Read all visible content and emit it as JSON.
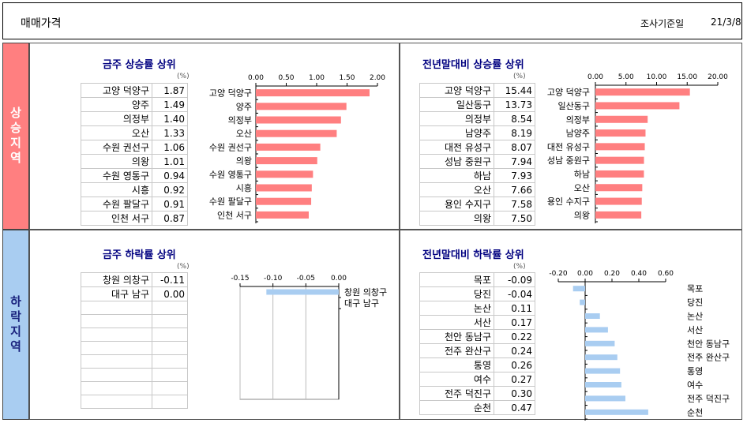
{
  "header": {
    "title": "매매가격",
    "date_label": "조사기준일",
    "date_value": "21/3/8"
  },
  "sections": {
    "rise": "상승지역",
    "fall": "하락지역"
  },
  "unit": "(%)",
  "colors": {
    "rise_bar": "#ff7f80",
    "fall_bar": "#a9cdf1",
    "title": "#000080"
  },
  "chart_data": [
    {
      "type": "bar",
      "orientation": "horizontal",
      "title": "금주 상승률 상위",
      "categories": [
        "고양 덕양구",
        "양주",
        "의정부",
        "오산",
        "수원 권선구",
        "의왕",
        "수원 영통구",
        "시흥",
        "수원 팔달구",
        "인천 서구"
      ],
      "values": [
        "1.87",
        "1.49",
        "1.40",
        "1.33",
        "1.06",
        "1.01",
        "0.94",
        "0.92",
        "0.91",
        "0.87"
      ],
      "xlim": [
        0,
        2
      ],
      "ticks": [
        "0.00",
        "0.50",
        "1.00",
        "1.50",
        "2.00"
      ],
      "axis_position": "top",
      "grid": false
    },
    {
      "type": "bar",
      "orientation": "horizontal",
      "title": "전년말대비 상승률 상위",
      "categories": [
        "고양 덕양구",
        "일산동구",
        "의정부",
        "남양주",
        "대전 유성구",
        "성남 중원구",
        "하남",
        "오산",
        "용인 수지구",
        "의왕"
      ],
      "values": [
        "15.44",
        "13.73",
        "8.54",
        "8.19",
        "8.07",
        "7.94",
        "7.93",
        "7.66",
        "7.58",
        "7.50"
      ],
      "xlim": [
        0,
        20
      ],
      "ticks": [
        "0.00",
        "5.00",
        "10.00",
        "15.00",
        "20.00"
      ],
      "axis_position": "top",
      "grid": false
    },
    {
      "type": "bar",
      "orientation": "horizontal",
      "title": "금주 하락률 상위",
      "categories": [
        "창원 의창구",
        "대구 남구"
      ],
      "values": [
        "-0.11",
        "0.00"
      ],
      "xlim": [
        -0.15,
        0
      ],
      "ticks": [
        "-0.15",
        "-0.10",
        "-0.05",
        "0.00"
      ],
      "axis_position": "top",
      "grid": true
    },
    {
      "type": "bar",
      "orientation": "horizontal",
      "title": "전년말대비 하락률 상위",
      "categories": [
        "목포",
        "당진",
        "논산",
        "서산",
        "천안 동남구",
        "전주 완산구",
        "통영",
        "여수",
        "전주 덕진구",
        "순천"
      ],
      "values": [
        "-0.09",
        "-0.04",
        "0.11",
        "0.17",
        "0.22",
        "0.24",
        "0.26",
        "0.27",
        "0.30",
        "0.47"
      ],
      "xlim": [
        -0.2,
        0.6
      ],
      "ticks": [
        "-0.20",
        "0.00",
        "0.20",
        "0.40",
        "0.60"
      ],
      "axis_position": "top",
      "grid": false
    }
  ]
}
